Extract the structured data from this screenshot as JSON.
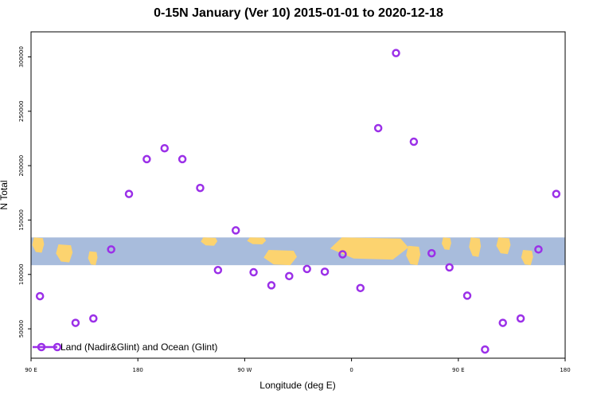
{
  "chart_data": {
    "type": "scatter",
    "title": "0-15N January (Ver 10)   2015-01-01 to 2020-12-18",
    "xlabel": "Longitude (deg E)",
    "ylabel": "N Total",
    "xlim": [
      90,
      540
    ],
    "ylim": [
      23000,
      323000
    ],
    "x_ticks": [
      {
        "value": 90,
        "label": "90 E"
      },
      {
        "value": 180,
        "label": "180"
      },
      {
        "value": 270,
        "label": "90 W"
      },
      {
        "value": 360,
        "label": "0"
      },
      {
        "value": 450,
        "label": "90 E"
      },
      {
        "value": 540,
        "label": "180"
      }
    ],
    "y_ticks": [
      {
        "value": 50000,
        "label": "50000"
      },
      {
        "value": 100000,
        "label": "100000"
      },
      {
        "value": 150000,
        "label": "150000"
      },
      {
        "value": 200000,
        "label": "200000"
      },
      {
        "value": 250000,
        "label": "250000"
      },
      {
        "value": 300000,
        "label": "300000"
      }
    ],
    "series": [
      {
        "name": "Land (Nadir&Glint) and Ocean (Glint)",
        "color": "#9b30e8",
        "x": [
          97.5,
          127.5,
          142.5,
          157.5,
          172.5,
          187.5,
          202.5,
          217.5,
          232.5,
          247.5,
          262.5,
          277.5,
          292.5,
          307.5,
          322.5,
          337.5,
          352.5,
          367.5,
          382.5,
          397.5,
          412.5,
          427.5,
          442.5,
          457.5,
          472.5,
          487.5,
          502.5,
          517.5,
          532.5
        ],
        "y": [
          80000,
          55500,
          59500,
          123000,
          174000,
          206000,
          216000,
          206000,
          179500,
          104000,
          140500,
          102000,
          90000,
          98500,
          105000,
          102500,
          118500,
          87500,
          234500,
          303500,
          222000,
          119500,
          106500,
          80500,
          31000,
          55500,
          59500,
          123000,
          174000
        ]
      }
    ],
    "legend": {
      "position": "bottom-left",
      "label": "Land (Nadir&Glint) and Ocean (Glint)"
    },
    "map_band": {
      "lat_range": "0-15N",
      "y_range": [
        108500,
        134000
      ],
      "ocean_color": "#a8bcdc",
      "land_color": "#fcd36f"
    },
    "grid": false
  }
}
